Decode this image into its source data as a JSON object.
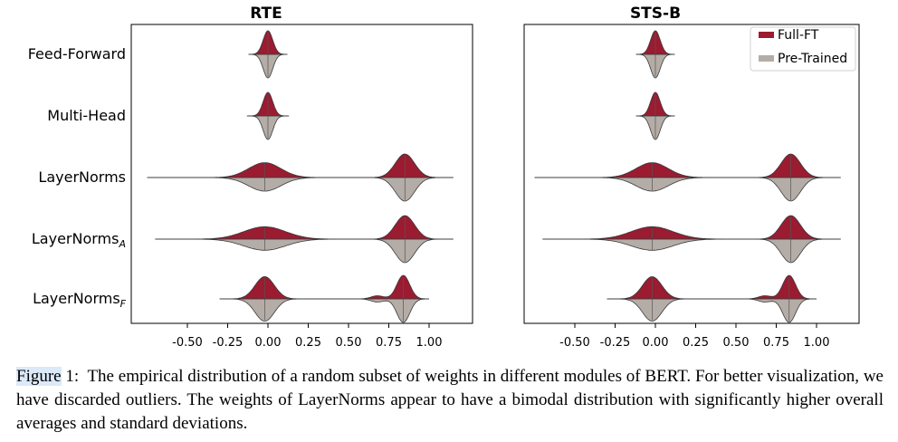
{
  "figure": {
    "panels": [
      {
        "title": "RTE"
      },
      {
        "title": "STS-B"
      }
    ],
    "rows": [
      {
        "label": "Feed-Forward",
        "subscript": ""
      },
      {
        "label": "Multi-Head",
        "subscript": ""
      },
      {
        "label": "LayerNorms",
        "subscript": ""
      },
      {
        "label": "LayerNorms",
        "subscript": "A"
      },
      {
        "label": "LayerNorms",
        "subscript": "F"
      }
    ],
    "legend": [
      {
        "label": "Full-FT",
        "color": "#9b1b30"
      },
      {
        "label": "Pre-Trained",
        "color": "#b4aca6"
      }
    ],
    "x_ticks": [
      "-0.50",
      "-0.25",
      "0.00",
      "0.25",
      "0.50",
      "0.75",
      "1.00"
    ]
  },
  "chart_data": [
    {
      "type": "violin",
      "title": "RTE",
      "x_ticks": [
        -0.5,
        -0.25,
        0.0,
        0.25,
        0.5,
        0.75,
        1.0
      ],
      "categories": [
        "Feed-Forward",
        "Multi-Head",
        "LayerNorms",
        "LayerNorms_A",
        "LayerNorms_F"
      ],
      "series": [
        {
          "name": "Full-FT",
          "side": "top",
          "distributions": [
            {
              "category": "Feed-Forward",
              "range": [
                -0.12,
                0.12
              ],
              "peaks": [
                {
                  "mu": 0.0,
                  "sigma": 0.03,
                  "weight": 1.0
                }
              ]
            },
            {
              "category": "Multi-Head",
              "range": [
                -0.13,
                0.13
              ],
              "peaks": [
                {
                  "mu": 0.0,
                  "sigma": 0.03,
                  "weight": 1.0
                }
              ]
            },
            {
              "category": "LayerNorms",
              "range": [
                -0.75,
                1.15
              ],
              "peaks": [
                {
                  "mu": -0.02,
                  "sigma": 0.1,
                  "weight": 0.6
                },
                {
                  "mu": 0.85,
                  "sigma": 0.06,
                  "weight": 0.95
                }
              ]
            },
            {
              "category": "LayerNorms_A",
              "range": [
                -0.7,
                1.15
              ],
              "peaks": [
                {
                  "mu": -0.02,
                  "sigma": 0.13,
                  "weight": 0.5
                },
                {
                  "mu": 0.85,
                  "sigma": 0.06,
                  "weight": 0.95
                }
              ]
            },
            {
              "category": "LayerNorms_F",
              "range": [
                -0.3,
                1.0
              ],
              "peaks": [
                {
                  "mu": -0.02,
                  "sigma": 0.06,
                  "weight": 0.85
                },
                {
                  "mu": 0.68,
                  "sigma": 0.04,
                  "weight": 0.12
                },
                {
                  "mu": 0.84,
                  "sigma": 0.04,
                  "weight": 0.9
                }
              ]
            }
          ]
        },
        {
          "name": "Pre-Trained",
          "side": "bottom",
          "distributions": [
            {
              "category": "Feed-Forward",
              "range": [
                -0.12,
                0.12
              ],
              "peaks": [
                {
                  "mu": 0.0,
                  "sigma": 0.03,
                  "weight": 1.0
                }
              ]
            },
            {
              "category": "Multi-Head",
              "range": [
                -0.13,
                0.13
              ],
              "peaks": [
                {
                  "mu": 0.0,
                  "sigma": 0.03,
                  "weight": 1.0
                }
              ]
            },
            {
              "category": "LayerNorms",
              "range": [
                -0.75,
                1.15
              ],
              "peaks": [
                {
                  "mu": -0.02,
                  "sigma": 0.1,
                  "weight": 0.55
                },
                {
                  "mu": 0.85,
                  "sigma": 0.06,
                  "weight": 0.95
                }
              ]
            },
            {
              "category": "LayerNorms_A",
              "range": [
                -0.7,
                1.15
              ],
              "peaks": [
                {
                  "mu": -0.02,
                  "sigma": 0.13,
                  "weight": 0.45
                },
                {
                  "mu": 0.85,
                  "sigma": 0.06,
                  "weight": 0.95
                }
              ]
            },
            {
              "category": "LayerNorms_F",
              "range": [
                -0.3,
                1.0
              ],
              "peaks": [
                {
                  "mu": -0.02,
                  "sigma": 0.06,
                  "weight": 0.85
                },
                {
                  "mu": 0.68,
                  "sigma": 0.04,
                  "weight": 0.12
                },
                {
                  "mu": 0.84,
                  "sigma": 0.04,
                  "weight": 0.9
                }
              ]
            }
          ]
        }
      ]
    },
    {
      "type": "violin",
      "title": "STS-B",
      "x_ticks": [
        -0.5,
        -0.25,
        0.0,
        0.25,
        0.5,
        0.75,
        1.0
      ],
      "categories": [
        "Feed-Forward",
        "Multi-Head",
        "LayerNorms",
        "LayerNorms_A",
        "LayerNorms_F"
      ],
      "series": [
        {
          "name": "Full-FT",
          "side": "top",
          "distributions": [
            {
              "category": "Feed-Forward",
              "range": [
                -0.12,
                0.12
              ],
              "peaks": [
                {
                  "mu": 0.0,
                  "sigma": 0.03,
                  "weight": 1.0
                }
              ]
            },
            {
              "category": "Multi-Head",
              "range": [
                -0.12,
                0.12
              ],
              "peaks": [
                {
                  "mu": 0.0,
                  "sigma": 0.03,
                  "weight": 1.0
                }
              ]
            },
            {
              "category": "LayerNorms",
              "range": [
                -0.75,
                1.15
              ],
              "peaks": [
                {
                  "mu": -0.02,
                  "sigma": 0.1,
                  "weight": 0.6
                },
                {
                  "mu": 0.84,
                  "sigma": 0.06,
                  "weight": 0.95
                }
              ]
            },
            {
              "category": "LayerNorms_A",
              "range": [
                -0.7,
                1.15
              ],
              "peaks": [
                {
                  "mu": -0.02,
                  "sigma": 0.13,
                  "weight": 0.5
                },
                {
                  "mu": 0.84,
                  "sigma": 0.06,
                  "weight": 0.95
                }
              ]
            },
            {
              "category": "LayerNorms_F",
              "range": [
                -0.3,
                1.0
              ],
              "peaks": [
                {
                  "mu": -0.02,
                  "sigma": 0.06,
                  "weight": 0.85
                },
                {
                  "mu": 0.68,
                  "sigma": 0.04,
                  "weight": 0.12
                },
                {
                  "mu": 0.83,
                  "sigma": 0.04,
                  "weight": 0.9
                }
              ]
            }
          ]
        },
        {
          "name": "Pre-Trained",
          "side": "bottom",
          "distributions": [
            {
              "category": "Feed-Forward",
              "range": [
                -0.12,
                0.12
              ],
              "peaks": [
                {
                  "mu": 0.0,
                  "sigma": 0.03,
                  "weight": 1.0
                }
              ]
            },
            {
              "category": "Multi-Head",
              "range": [
                -0.12,
                0.12
              ],
              "peaks": [
                {
                  "mu": 0.0,
                  "sigma": 0.03,
                  "weight": 1.0
                }
              ]
            },
            {
              "category": "LayerNorms",
              "range": [
                -0.75,
                1.15
              ],
              "peaks": [
                {
                  "mu": -0.02,
                  "sigma": 0.1,
                  "weight": 0.55
                },
                {
                  "mu": 0.84,
                  "sigma": 0.06,
                  "weight": 0.95
                }
              ]
            },
            {
              "category": "LayerNorms_A",
              "range": [
                -0.7,
                1.15
              ],
              "peaks": [
                {
                  "mu": -0.02,
                  "sigma": 0.13,
                  "weight": 0.45
                },
                {
                  "mu": 0.84,
                  "sigma": 0.06,
                  "weight": 0.95
                }
              ]
            },
            {
              "category": "LayerNorms_F",
              "range": [
                -0.3,
                1.0
              ],
              "peaks": [
                {
                  "mu": -0.02,
                  "sigma": 0.06,
                  "weight": 0.85
                },
                {
                  "mu": 0.68,
                  "sigma": 0.04,
                  "weight": 0.12
                },
                {
                  "mu": 0.83,
                  "sigma": 0.04,
                  "weight": 0.9
                }
              ]
            }
          ]
        }
      ]
    }
  ],
  "caption": {
    "label": "Figure",
    "number": "1:",
    "text": "The empirical distribution of a random subset of weights in different modules of BERT. For better visualization, we have discarded outliers. The weights of LayerNorms appear to have a bimodal distribution with significantly higher overall averages and standard deviations."
  }
}
